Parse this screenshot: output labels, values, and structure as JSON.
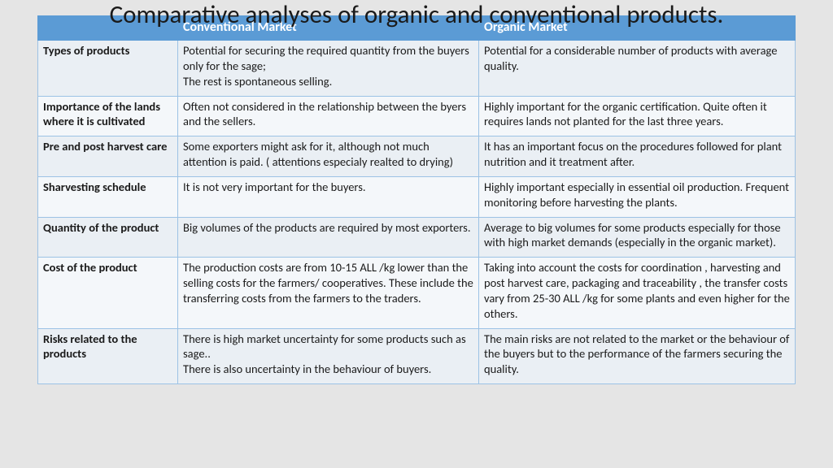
{
  "title": "Comparative analyses of organic and conventional products.",
  "headers": {
    "blank": "",
    "col1": "Conventional Market",
    "col2": "Organic Market"
  },
  "rows": [
    {
      "label": "Types of products",
      "conv": "Potential for securing the required quantity from the buyers  only for the sage;\nThe rest is spontaneous selling.",
      "org": "Potential for a considerable number of products with average quality."
    },
    {
      "label": "Importance of the lands where it is cultivated",
      "conv": "Often not considered  in the relationship between the byers and the sellers.",
      "org": "Highly important for the organic certification. Quite often it requires lands not planted for the last three years."
    },
    {
      "label": "Pre and post harvest care",
      "conv": "Some exporters might ask for it, although not much attention is paid. ( attentions especialy realted to drying)",
      "org": "It has an important focus on the procedures followed for plant nutrition and it treatment after."
    },
    {
      "label": "Sharvesting schedule",
      "conv": "It is not very important for the buyers.",
      "org": "Highly important especially in essential oil production. Frequent monitoring before harvesting the plants."
    },
    {
      "label": "Quantity of the product",
      "conv": "Big volumes of the products are required by most exporters.",
      "org": "Average to big volumes for some products  especially for those with high market demands (especially in the organic market)."
    },
    {
      "label": "Cost of the product",
      "conv": "The production costs are  from 10-15 ALL /kg lower than the selling  costs  for the farmers/ cooperatives. These include the transferring costs  from the farmers to the traders.",
      "org": "Taking into account the costs for coordination , harvesting and post harvest care, packaging and traceability , the transfer costs vary from 25-30 ALL /kg for some plants and even higher for the others."
    },
    {
      "label": "Risks  related to the products",
      "conv": "There is high market uncertainty for some products such as sage..\nThere is also uncertainty in the behaviour of buyers.",
      "org": "The main risks are not related to the market or the behaviour of the buyers but  to the performance of the farmers securing the quality."
    }
  ],
  "colors": {
    "header_bg": "#5b9bd5",
    "header_fg": "#ffffff",
    "border": "#9cc2e5",
    "row_odd": "#eaeff4",
    "row_even": "#f4f7fa",
    "page_bg": "#e5e5e5"
  }
}
